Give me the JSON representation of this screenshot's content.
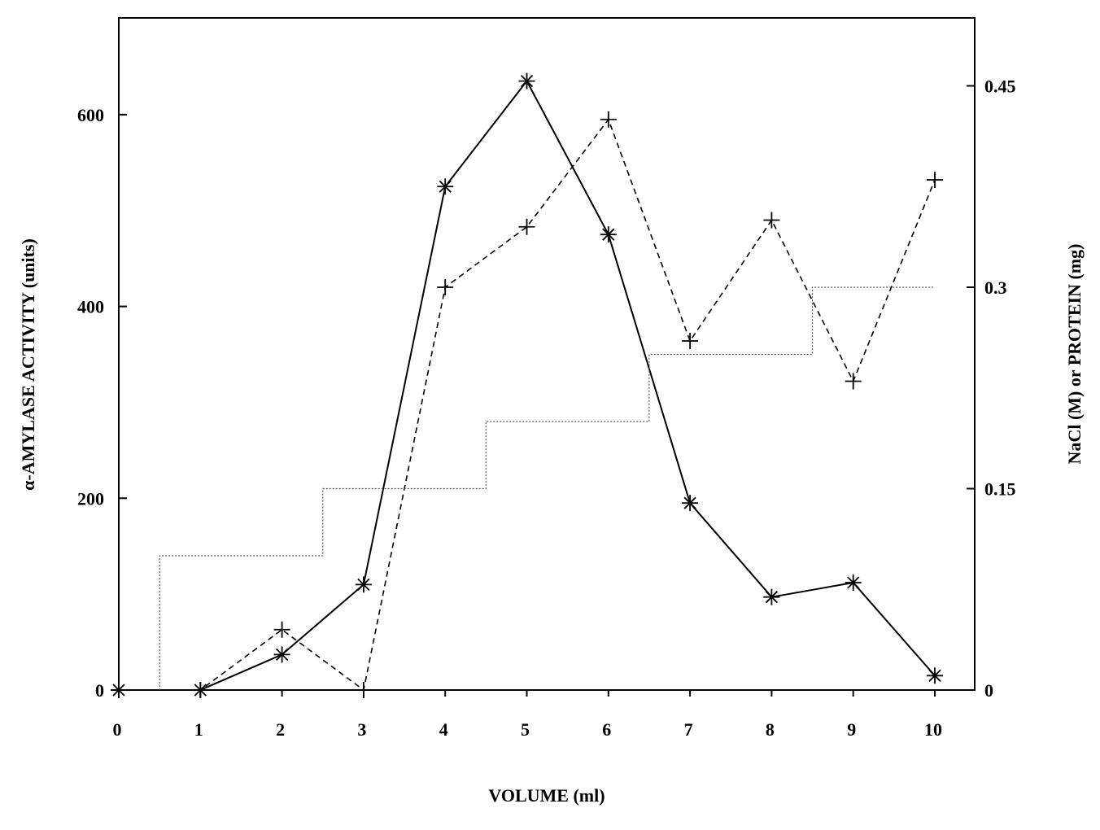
{
  "chart_data": {
    "type": "line",
    "xlabel": "VOLUME (ml)",
    "ylabel": "α-AMYLASE ACTIVITY (units)",
    "y2label": "NaCl (M) or PROTEIN (mg)",
    "x_ticks": [
      "0",
      "1",
      "2",
      "3",
      "4",
      "5",
      "6",
      "7",
      "8",
      "9",
      "10"
    ],
    "y_ticks": [
      "0",
      "200",
      "400",
      "600"
    ],
    "y2_ticks": [
      "0",
      "0.15",
      "0.3",
      "0.45"
    ],
    "xlim": [
      0,
      10.5
    ],
    "ylim": [
      0,
      700
    ],
    "y2lim": [
      0,
      0.5
    ],
    "grid": false,
    "series": [
      {
        "axis": "left",
        "line_style": "solid",
        "marker": "asterisk",
        "x": [
          0,
          1,
          2,
          3,
          4,
          5,
          6,
          7,
          8,
          9,
          10
        ],
        "y": [
          0,
          0,
          37,
          110,
          525,
          635,
          475,
          195,
          97,
          112,
          15
        ]
      },
      {
        "axis": "right",
        "line_style": "dashed",
        "marker": "plus",
        "x": [
          0,
          1,
          2,
          3,
          4,
          5,
          6,
          7,
          8,
          9,
          10
        ],
        "y": [
          0,
          0,
          0.045,
          0,
          0.3,
          0.345,
          0.425,
          0.26,
          0.35,
          0.23,
          0.38
        ]
      },
      {
        "axis": "right",
        "line_style": "dotted-step",
        "marker": "none",
        "x": [
          0.5,
          0.5,
          2.5,
          2.5,
          4.5,
          4.5,
          6.5,
          6.5,
          8.5,
          8.5,
          10
        ],
        "y": [
          0,
          0.1,
          0.1,
          0.15,
          0.15,
          0.2,
          0.2,
          0.25,
          0.25,
          0.3,
          0.3
        ]
      }
    ]
  }
}
